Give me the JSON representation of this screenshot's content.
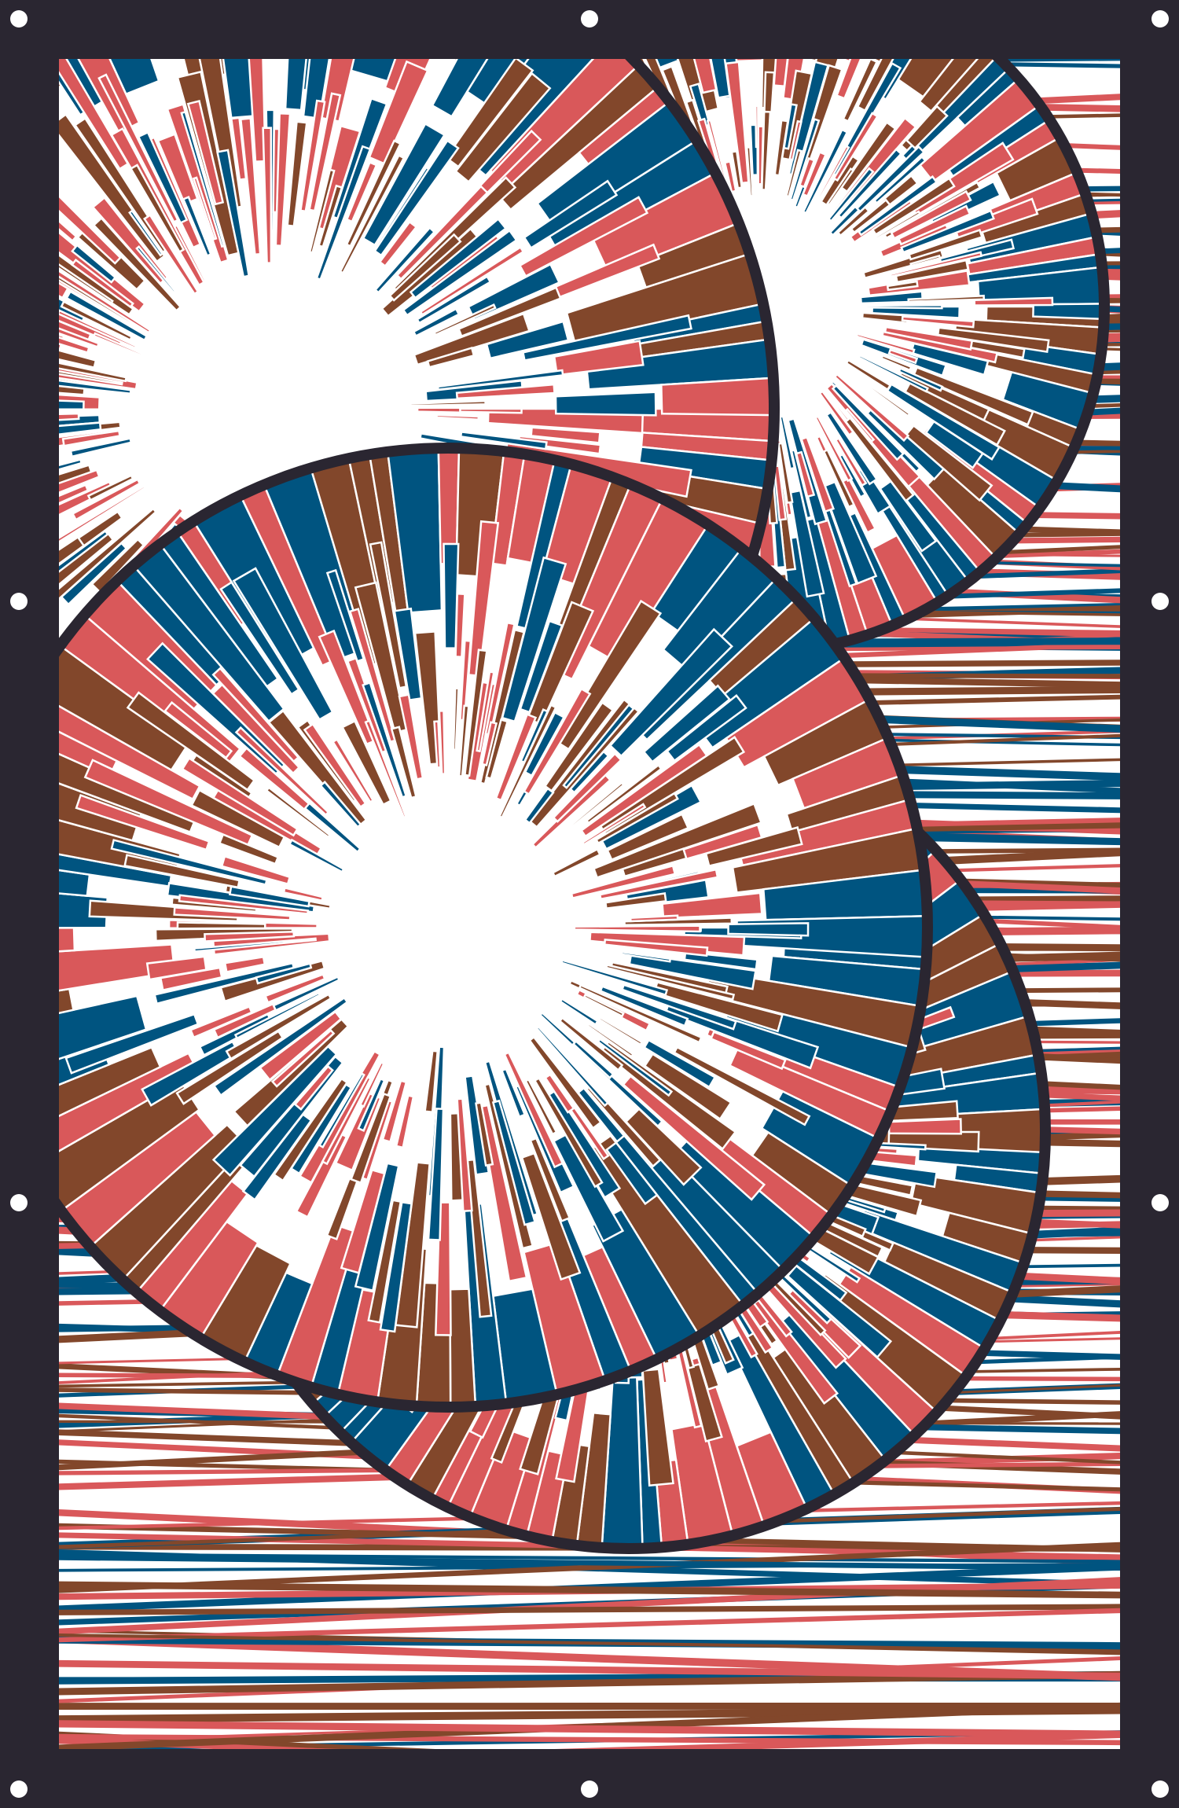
{
  "palette": {
    "frame": "#2a2631",
    "coral": "#d9585a",
    "navy": "#005480",
    "brown": "#82472b",
    "white": "#ffffff"
  },
  "artwork": {
    "description_visible_text": "",
    "rosettes": 4,
    "mount_holes": 10,
    "colors_used": [
      "coral",
      "navy",
      "brown"
    ]
  }
}
